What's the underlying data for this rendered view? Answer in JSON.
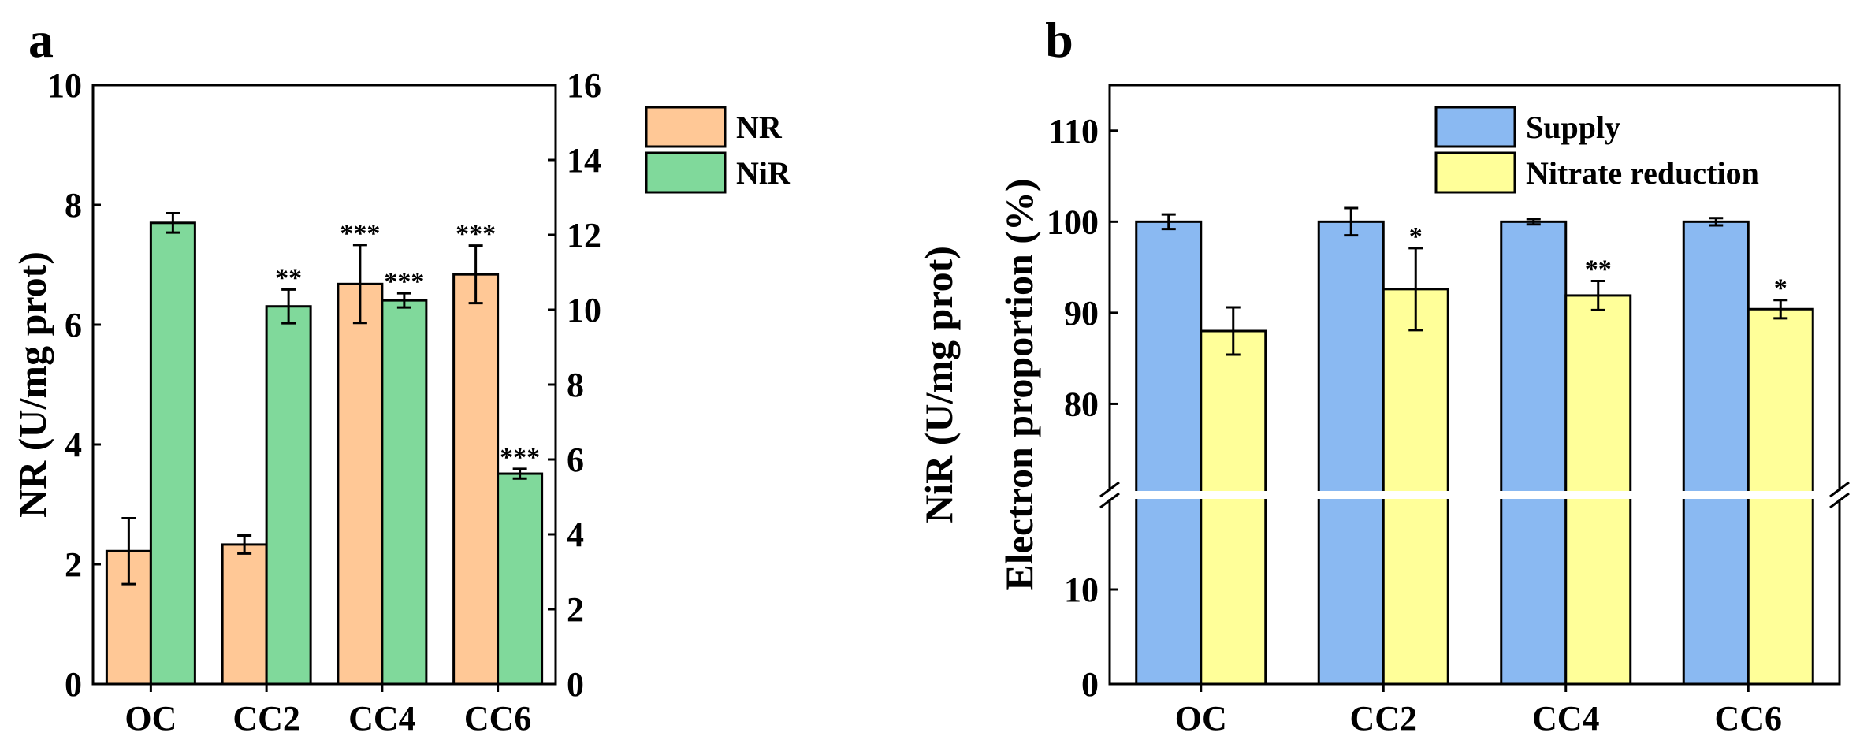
{
  "colors": {
    "nr": "#FFC896",
    "nir": "#80D99B",
    "supply": "#8AB9F2",
    "nitrate": "#FFFF99",
    "axis": "#000000",
    "break": "#ffffff"
  },
  "chart_data": [
    {
      "panel": "a",
      "type": "bar",
      "categories": [
        "OC",
        "CC2",
        "CC4",
        "CC6"
      ],
      "ylabel": "NR (U/mg prot)",
      "ylabel_right": "NiR (U/mg prot)",
      "ylim": [
        0,
        10
      ],
      "yticks": [
        0,
        2,
        4,
        6,
        8,
        10
      ],
      "ylim_right": [
        0,
        16
      ],
      "yticks_right": [
        0,
        2,
        4,
        6,
        8,
        10,
        12,
        14,
        16
      ],
      "legend_position": "top-right",
      "series": [
        {
          "name": "NR",
          "axis": "left",
          "color_key": "nr",
          "values": [
            2.22,
            2.33,
            6.68,
            6.84
          ],
          "errors": [
            0.55,
            0.15,
            0.65,
            0.48
          ],
          "significance": [
            "",
            "",
            "***",
            "***"
          ]
        },
        {
          "name": "NiR",
          "axis": "right",
          "color_key": "nir",
          "values": [
            12.32,
            10.09,
            10.25,
            5.62
          ],
          "errors": [
            0.26,
            0.45,
            0.19,
            0.13
          ],
          "significance": [
            "",
            "**",
            "***",
            "***"
          ]
        }
      ]
    },
    {
      "panel": "b",
      "type": "bar",
      "categories": [
        "OC",
        "CC2",
        "CC4",
        "CC6"
      ],
      "ylabel": "Electron proportion (%)",
      "ylim": [
        0,
        115
      ],
      "axis_break": [
        20,
        70
      ],
      "yticks": [
        0,
        10,
        80,
        90,
        100,
        110
      ],
      "legend_position": "top-right",
      "series": [
        {
          "name": "Supply",
          "color_key": "supply",
          "values": [
            100,
            100,
            100,
            100
          ],
          "errors": [
            0.8,
            1.5,
            0.3,
            0.4
          ],
          "significance": [
            "",
            "",
            "",
            ""
          ]
        },
        {
          "name": "Nitrate reduction",
          "color_key": "nitrate",
          "values": [
            88.0,
            92.6,
            91.9,
            90.4
          ],
          "errors": [
            2.6,
            4.5,
            1.6,
            1.0
          ],
          "significance": [
            "",
            "*",
            "**",
            "*"
          ]
        }
      ]
    }
  ]
}
